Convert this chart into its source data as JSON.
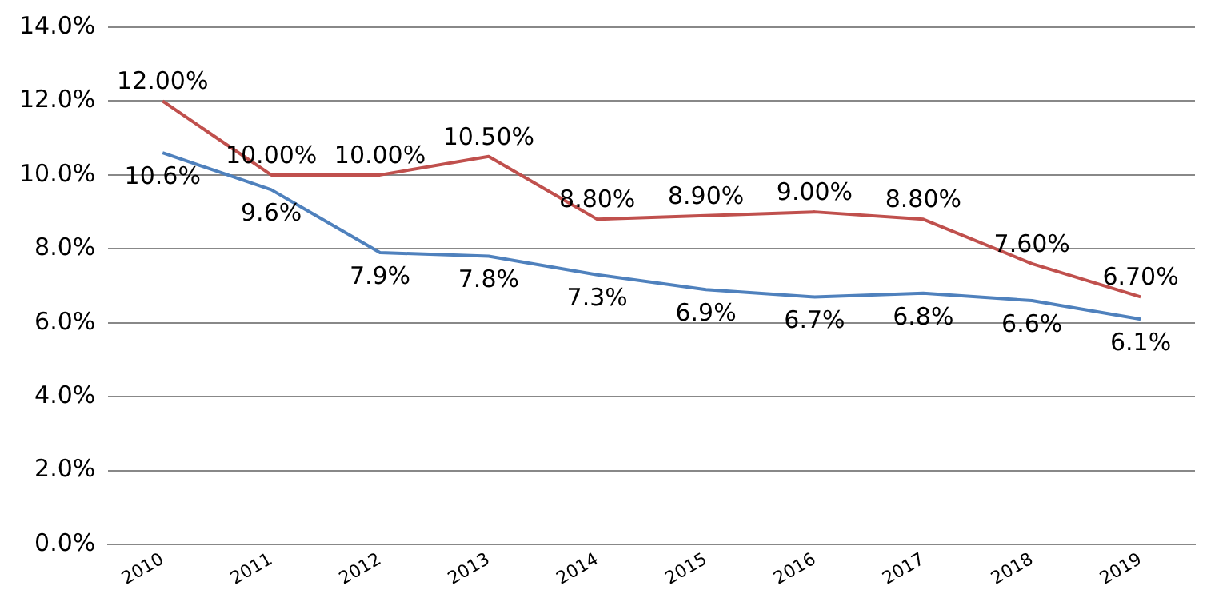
{
  "chart_data": {
    "type": "line",
    "categories": [
      "2010",
      "2011",
      "2012",
      "2013",
      "2014",
      "2015",
      "2016",
      "2017",
      "2018",
      "2019"
    ],
    "series": [
      {
        "color": "#c0504d",
        "values": [
          12.0,
          10.0,
          10.0,
          10.5,
          8.8,
          8.9,
          9.0,
          8.8,
          7.6,
          6.7
        ],
        "value_labels": [
          "12.00%",
          "10.00%",
          "10.00%",
          "10.50%",
          "8.80%",
          "8.90%",
          "9.00%",
          "8.80%",
          "7.60%",
          "6.70%"
        ]
      },
      {
        "color": "#4f81bd",
        "values": [
          10.6,
          9.6,
          7.9,
          7.8,
          7.3,
          6.9,
          6.7,
          6.8,
          6.6,
          6.1
        ],
        "value_labels": [
          "10.6%",
          "9.6%",
          "7.9%",
          "7.8%",
          "7.3%",
          "6.9%",
          "6.7%",
          "6.8%",
          "6.6%",
          "6.1%"
        ]
      }
    ],
    "ylim": [
      0,
      14
    ],
    "yticks": [
      {
        "value": 0,
        "label": "0.0%"
      },
      {
        "value": 2,
        "label": "2.0%"
      },
      {
        "value": 4,
        "label": "4.0%"
      },
      {
        "value": 6,
        "label": "6.0%"
      },
      {
        "value": 8,
        "label": "8.0%"
      },
      {
        "value": 10,
        "label": "10.0%"
      },
      {
        "value": 12,
        "label": "12.0%"
      },
      {
        "value": 14,
        "label": "14.0%"
      }
    ],
    "grid": "y",
    "legend": false,
    "marker": "none",
    "line_style": "solid"
  }
}
